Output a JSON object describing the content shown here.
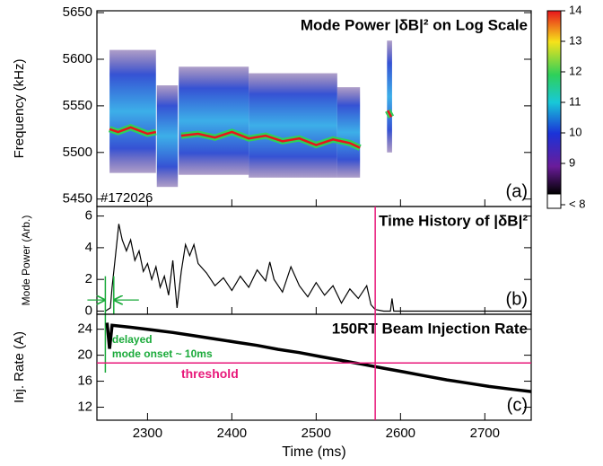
{
  "chart_data": [
    {
      "type": "heatmap",
      "title": "Mode Power |δB|² on Log Scale",
      "annotation": "#172026",
      "panel_label": "(a)",
      "ylabel": "Frequency (kHz)",
      "xlim": [
        2240,
        2755
      ],
      "ylim": [
        5442,
        5652
      ],
      "yticks": [
        5450,
        5500,
        5550,
        5600,
        5650
      ],
      "bands": [
        {
          "start": 2255,
          "end": 2310,
          "low": 5478,
          "high": 5610
        },
        {
          "start": 2311,
          "end": 2336,
          "low": 5463,
          "high": 5572
        },
        {
          "start": 2337,
          "end": 2420,
          "low": 5476,
          "high": 5592
        },
        {
          "start": 2420,
          "end": 2525,
          "low": 5473,
          "high": 5585
        },
        {
          "start": 2525,
          "end": 2552,
          "low": 5473,
          "high": 5570
        },
        {
          "start": 2584,
          "end": 2590,
          "low": 5500,
          "high": 5620
        }
      ],
      "x": [
        2255,
        2265,
        2280,
        2300,
        2310,
        2312,
        2330,
        2336,
        2340,
        2360,
        2380,
        2400,
        2420,
        2440,
        2460,
        2480,
        2500,
        2520,
        2540,
        2552,
        null,
        2585,
        2589
      ],
      "values": [
        5525,
        5522,
        5527,
        5520,
        5522,
        null,
        5493,
        null,
        5518,
        5520,
        5516,
        5522,
        5515,
        5518,
        5512,
        5515,
        5508,
        5514,
        5510,
        5505,
        null,
        5545,
        5538
      ],
      "colorbar": {
        "lim": [
          8,
          14
        ],
        "ticks": [
          14,
          13,
          12,
          11,
          10,
          9,
          {
            "value": 8,
            "label": "< 8"
          }
        ]
      }
    },
    {
      "type": "line",
      "title": "Time History of |δB|²",
      "panel_label": "(b)",
      "ylabel": "Mode Power (Arb.)",
      "xlim": [
        2240,
        2755
      ],
      "ylim": [
        -0.2,
        6.6
      ],
      "yticks": [
        0,
        2,
        4,
        6
      ],
      "color": "#000000",
      "x": [
        2250,
        2256,
        2258,
        2262,
        2266,
        2270,
        2275,
        2280,
        2285,
        2290,
        2295,
        2300,
        2305,
        2310,
        2315,
        2320,
        2325,
        2330,
        2335,
        2340,
        2345,
        2350,
        2355,
        2360,
        2370,
        2380,
        2390,
        2400,
        2410,
        2420,
        2430,
        2440,
        2445,
        2450,
        2460,
        2470,
        2480,
        2490,
        2500,
        2510,
        2520,
        2530,
        2540,
        2550,
        2560,
        2565,
        2570,
        2580,
        2588,
        2590,
        2592,
        2600,
        2755
      ],
      "values": [
        0,
        0.2,
        1.5,
        3.5,
        5.5,
        4.5,
        3.8,
        4.5,
        3.2,
        3.8,
        2.5,
        3.0,
        2.0,
        2.8,
        1.5,
        2.2,
        1.0,
        3.2,
        0.2,
        2.5,
        4.2,
        3.5,
        4.2,
        3.0,
        2.4,
        1.6,
        2.1,
        1.3,
        2.2,
        1.5,
        2.6,
        1.9,
        3.1,
        2.0,
        1.2,
        2.8,
        1.6,
        0.9,
        1.8,
        1.0,
        1.6,
        0.5,
        1.4,
        0.8,
        1.6,
        0.4,
        0.1,
        0,
        0,
        0.8,
        0,
        0,
        0
      ],
      "onset_window": [
        2250,
        2260
      ]
    },
    {
      "type": "line",
      "title": "150RT Beam Injection Rate",
      "panel_label": "(c)",
      "ylabel": "Inj. Rate (A)",
      "xlabel": "Time (ms)",
      "xlim": [
        2240,
        2755
      ],
      "ylim": [
        10,
        26.3
      ],
      "yticks": [
        12,
        16,
        20,
        24
      ],
      "xticks": [
        2300,
        2400,
        2500,
        2600,
        2700
      ],
      "color": "#000000",
      "x": [
        2252,
        2255,
        2258,
        2280,
        2305,
        2330,
        2355,
        2380,
        2405,
        2430,
        2455,
        2480,
        2505,
        2530,
        2555,
        2580,
        2605,
        2630,
        2655,
        2680,
        2705,
        2730,
        2755
      ],
      "values": [
        25,
        21,
        24.6,
        24.3,
        23.9,
        23.5,
        23.0,
        22.5,
        22.0,
        21.5,
        20.9,
        20.4,
        19.8,
        19.2,
        18.6,
        18.0,
        17.4,
        16.8,
        16.2,
        15.7,
        15.2,
        14.8,
        14.4
      ],
      "threshold": {
        "label": "threshold",
        "value": 18.8
      },
      "annotation": [
        "delayed",
        "mode onset ~ 10ms"
      ],
      "limit_time": 2570
    }
  ]
}
